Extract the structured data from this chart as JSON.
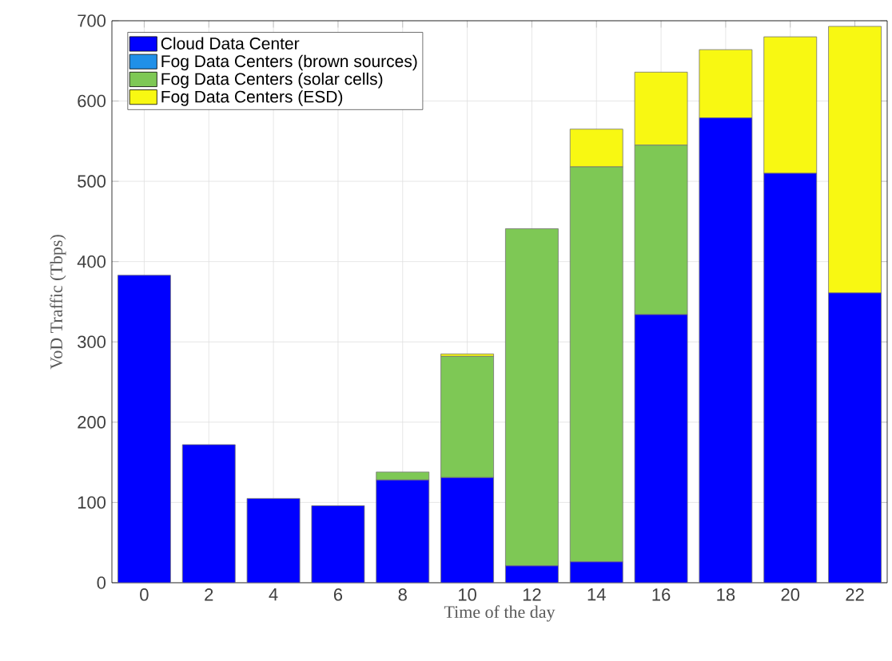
{
  "chart_data": {
    "type": "bar",
    "stacked": true,
    "xlabel": "Time of the day",
    "ylabel": "VoD Traffic (Tbps)",
    "categories": [
      "0",
      "2",
      "4",
      "6",
      "8",
      "10",
      "12",
      "14",
      "16",
      "18",
      "20",
      "22"
    ],
    "series": [
      {
        "name": "Cloud Data Center",
        "color": "#0000ff",
        "values": [
          383,
          172,
          105,
          96,
          128,
          131,
          21,
          26,
          334,
          579,
          510,
          361
        ]
      },
      {
        "name": "Fog Data Centers (brown sources)",
        "color": "#2090e8",
        "values": [
          0,
          0,
          0,
          0,
          0,
          0,
          0,
          0,
          0,
          0,
          0,
          0
        ]
      },
      {
        "name": "Fog Data Centers (solar cells)",
        "color": "#7ec855",
        "values": [
          0,
          0,
          0,
          0,
          10,
          151,
          420,
          492,
          211,
          0,
          0,
          0
        ]
      },
      {
        "name": "Fog Data Centers (ESD)",
        "color": "#f8f812",
        "values": [
          0,
          0,
          0,
          0,
          0,
          3,
          0,
          47,
          91,
          85,
          170,
          332
        ]
      }
    ],
    "ylim": [
      0,
      700
    ],
    "yticks": [
      0,
      100,
      200,
      300,
      400,
      500,
      600,
      700
    ],
    "grid": true,
    "legend": "top left"
  }
}
